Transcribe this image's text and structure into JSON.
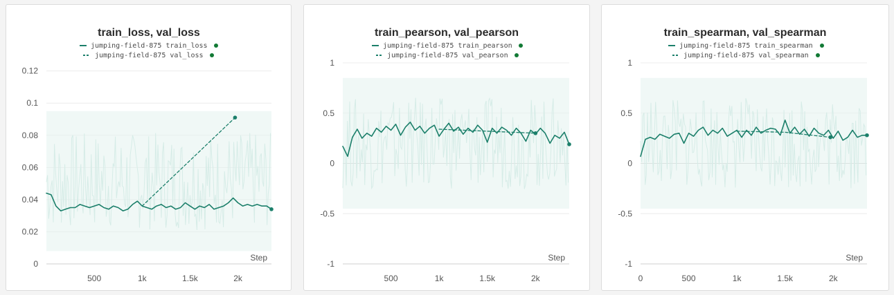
{
  "colors": {
    "series": "#1b7f6a",
    "raw": "#d6ece7",
    "band": "#e4f3ef",
    "end_dot": "#127a35"
  },
  "chart_data": [
    {
      "type": "line",
      "title": "train_loss, val_loss",
      "xlabel": "Step",
      "xlim": [
        0,
        2350
      ],
      "ylim": [
        0,
        0.125
      ],
      "xticks": [
        500,
        1000,
        1500,
        2000
      ],
      "xtick_labels": [
        "500",
        "1k",
        "1.5k",
        "2k"
      ],
      "yticks": [
        0,
        0.02,
        0.04,
        0.06,
        0.08,
        0.1,
        0.12
      ],
      "ytick_labels": [
        "0",
        "0.02",
        "0.04",
        "0.06",
        "0.08",
        "0.1",
        "0.12"
      ],
      "grid": true,
      "legend": "top-center",
      "series": [
        {
          "name": "jumping-field-875 train_loss",
          "style": "solid",
          "raw_band": [
            0.008,
            0.095
          ],
          "x": [
            0,
            50,
            100,
            150,
            200,
            250,
            300,
            350,
            400,
            450,
            500,
            550,
            600,
            650,
            700,
            750,
            800,
            850,
            900,
            950,
            1000,
            1050,
            1100,
            1150,
            1200,
            1250,
            1300,
            1350,
            1400,
            1450,
            1500,
            1550,
            1600,
            1650,
            1700,
            1750,
            1800,
            1850,
            1900,
            1950,
            2000,
            2050,
            2100,
            2150,
            2200,
            2250,
            2300,
            2350
          ],
          "y": [
            0.044,
            0.043,
            0.036,
            0.033,
            0.034,
            0.035,
            0.035,
            0.037,
            0.036,
            0.035,
            0.036,
            0.037,
            0.035,
            0.034,
            0.036,
            0.035,
            0.033,
            0.034,
            0.037,
            0.039,
            0.036,
            0.035,
            0.034,
            0.036,
            0.037,
            0.035,
            0.036,
            0.034,
            0.035,
            0.038,
            0.036,
            0.034,
            0.036,
            0.035,
            0.037,
            0.034,
            0.035,
            0.036,
            0.038,
            0.041,
            0.038,
            0.036,
            0.037,
            0.036,
            0.037,
            0.036,
            0.036,
            0.034
          ]
        },
        {
          "name": "jumping-field-875 val_loss",
          "style": "dashed",
          "x": [
            1000,
            1970
          ],
          "y": [
            0.036,
            0.091
          ]
        }
      ]
    },
    {
      "type": "line",
      "title": "train_pearson, val_pearson",
      "xlabel": "Step",
      "xlim": [
        0,
        2350
      ],
      "ylim": [
        -1,
        1
      ],
      "xticks": [
        500,
        1000,
        1500,
        2000
      ],
      "xtick_labels": [
        "500",
        "1k",
        "1.5k",
        "2k"
      ],
      "yticks": [
        -1,
        -0.5,
        0,
        0.5,
        1
      ],
      "ytick_labels": [
        "-1",
        "-0.5",
        "0",
        "0.5",
        "1"
      ],
      "grid": true,
      "legend": "top-center",
      "series": [
        {
          "name": "jumping-field-875 train_pearson",
          "style": "solid",
          "raw_band": [
            -0.45,
            0.85
          ],
          "x": [
            0,
            50,
            100,
            150,
            200,
            250,
            300,
            350,
            400,
            450,
            500,
            550,
            600,
            650,
            700,
            750,
            800,
            850,
            900,
            950,
            1000,
            1050,
            1100,
            1150,
            1200,
            1250,
            1300,
            1350,
            1400,
            1450,
            1500,
            1550,
            1600,
            1650,
            1700,
            1750,
            1800,
            1850,
            1900,
            1950,
            2000,
            2050,
            2100,
            2150,
            2200,
            2250,
            2300,
            2350
          ],
          "y": [
            0.17,
            0.07,
            0.26,
            0.34,
            0.25,
            0.3,
            0.27,
            0.35,
            0.31,
            0.37,
            0.33,
            0.39,
            0.28,
            0.36,
            0.41,
            0.33,
            0.37,
            0.3,
            0.35,
            0.38,
            0.27,
            0.34,
            0.4,
            0.32,
            0.36,
            0.29,
            0.35,
            0.31,
            0.38,
            0.33,
            0.21,
            0.35,
            0.3,
            0.36,
            0.33,
            0.28,
            0.35,
            0.3,
            0.22,
            0.33,
            0.29,
            0.35,
            0.3,
            0.2,
            0.28,
            0.25,
            0.31,
            0.19
          ]
        },
        {
          "name": "jumping-field-875 val_pearson",
          "style": "dashed",
          "x": [
            1000,
            1500,
            2000
          ],
          "y": [
            0.34,
            0.32,
            0.3
          ]
        }
      ]
    },
    {
      "type": "line",
      "title": "train_spearman, val_spearman",
      "xlabel": "Step",
      "xlim": [
        0,
        2350
      ],
      "ylim": [
        -1,
        1
      ],
      "xticks": [
        0,
        500,
        1000,
        1500,
        2000
      ],
      "xtick_labels": [
        "0",
        "500",
        "1k",
        "1.5k",
        "2k"
      ],
      "yticks": [
        -1,
        -0.5,
        0,
        0.5,
        1
      ],
      "ytick_labels": [
        "-1",
        "-0.5",
        "0",
        "0.5",
        "1"
      ],
      "grid": true,
      "legend": "top-center",
      "series": [
        {
          "name": "jumping-field-875 train_spearman",
          "style": "solid",
          "raw_band": [
            -0.45,
            0.85
          ],
          "x": [
            0,
            50,
            100,
            150,
            200,
            250,
            300,
            350,
            400,
            450,
            500,
            550,
            600,
            650,
            700,
            750,
            800,
            850,
            900,
            950,
            1000,
            1050,
            1100,
            1150,
            1200,
            1250,
            1300,
            1350,
            1400,
            1450,
            1500,
            1550,
            1600,
            1650,
            1700,
            1750,
            1800,
            1850,
            1900,
            1950,
            2000,
            2050,
            2100,
            2150,
            2200,
            2250,
            2300,
            2350
          ],
          "y": [
            0.07,
            0.24,
            0.26,
            0.24,
            0.29,
            0.27,
            0.25,
            0.29,
            0.3,
            0.2,
            0.3,
            0.27,
            0.33,
            0.36,
            0.28,
            0.33,
            0.3,
            0.35,
            0.27,
            0.3,
            0.33,
            0.26,
            0.33,
            0.28,
            0.36,
            0.3,
            0.33,
            0.35,
            0.34,
            0.28,
            0.43,
            0.3,
            0.36,
            0.29,
            0.34,
            0.27,
            0.35,
            0.3,
            0.28,
            0.33,
            0.25,
            0.32,
            0.23,
            0.26,
            0.33,
            0.26,
            0.28,
            0.28
          ]
        },
        {
          "name": "jumping-field-875 val_spearman",
          "style": "dashed",
          "x": [
            1000,
            1500,
            1970
          ],
          "y": [
            0.32,
            0.31,
            0.26
          ]
        }
      ]
    }
  ]
}
